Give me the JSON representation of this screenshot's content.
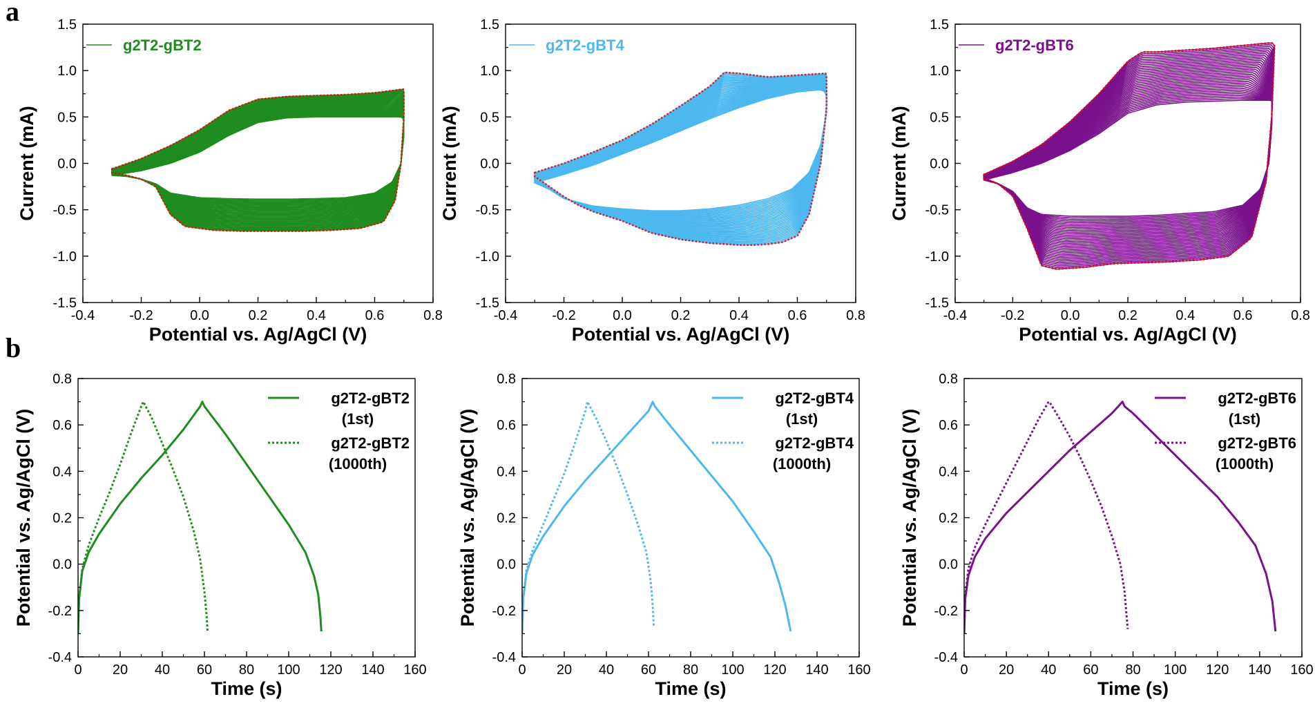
{
  "panel_labels": {
    "a": "a",
    "b": "b"
  },
  "chart_data": [
    {
      "id": "cv1",
      "type": "line",
      "row": "a",
      "col": 0,
      "xlabel": "Potential vs. Ag/AgCl (V)",
      "ylabel": "Current (mA)",
      "xlim": [
        -0.4,
        0.8
      ],
      "ylim": [
        -1.5,
        1.5
      ],
      "xticks": [
        -0.4,
        -0.2,
        0.0,
        0.2,
        0.4,
        0.6,
        0.8
      ],
      "xtick_labels": [
        "-0.4",
        "-0.2",
        "0.0",
        "0.2",
        "0.4",
        "0.6",
        "0.8"
      ],
      "yticks": [
        -1.5,
        -1.0,
        -0.5,
        0.0,
        0.5,
        1.0,
        1.5
      ],
      "ytick_labels": [
        "-1.5",
        "-1.0",
        "-0.5",
        "0.0",
        "0.5",
        "1.0",
        "1.5"
      ],
      "color": "#1e8c1e",
      "envelope_color": "#ff0000",
      "legend": [
        {
          "label": "g2T2-gBT2",
          "style": "solid"
        }
      ],
      "legend_position": "top-left",
      "series": [
        {
          "name": "g2T2-gBT2",
          "role": "first-cycle",
          "x": [
            -0.3,
            -0.2,
            -0.1,
            0.0,
            0.1,
            0.2,
            0.3,
            0.4,
            0.5,
            0.6,
            0.65,
            0.7,
            0.7,
            0.69,
            0.66,
            0.6,
            0.5,
            0.4,
            0.3,
            0.2,
            0.1,
            0.0,
            -0.1,
            -0.15,
            -0.2,
            -0.25,
            -0.3
          ],
          "y": [
            -0.13,
            -0.08,
            0.0,
            0.12,
            0.3,
            0.44,
            0.49,
            0.5,
            0.5,
            0.5,
            0.5,
            0.5,
            0.3,
            0.0,
            -0.2,
            -0.32,
            -0.37,
            -0.38,
            -0.385,
            -0.385,
            -0.38,
            -0.37,
            -0.32,
            -0.22,
            -0.17,
            -0.14,
            -0.13
          ]
        },
        {
          "name": "envelope",
          "role": "envelope",
          "x": [
            -0.3,
            -0.2,
            -0.1,
            0.0,
            0.1,
            0.2,
            0.3,
            0.4,
            0.5,
            0.6,
            0.65,
            0.7,
            0.7,
            0.69,
            0.67,
            0.63,
            0.55,
            0.45,
            0.35,
            0.25,
            0.15,
            0.05,
            -0.05,
            -0.1,
            -0.15,
            -0.2,
            -0.25,
            -0.3
          ],
          "y": [
            -0.06,
            0.05,
            0.19,
            0.36,
            0.57,
            0.69,
            0.72,
            0.73,
            0.74,
            0.76,
            0.78,
            0.8,
            0.5,
            0.0,
            -0.4,
            -0.63,
            -0.7,
            -0.72,
            -0.73,
            -0.73,
            -0.73,
            -0.72,
            -0.68,
            -0.55,
            -0.25,
            -0.17,
            -0.13,
            -0.1
          ]
        }
      ]
    },
    {
      "id": "cv2",
      "type": "line",
      "row": "a",
      "col": 1,
      "xlabel": "Potential vs. Ag/AgCl (V)",
      "ylabel": "Current (mA)",
      "xlim": [
        -0.4,
        0.8
      ],
      "ylim": [
        -1.5,
        1.5
      ],
      "xticks": [
        -0.4,
        -0.2,
        0.0,
        0.2,
        0.4,
        0.6,
        0.8
      ],
      "xtick_labels": [
        "-0.4",
        "-0.2",
        "0.0",
        "0.2",
        "0.4",
        "0.6",
        "0.8"
      ],
      "yticks": [
        -1.5,
        -1.0,
        -0.5,
        0.0,
        0.5,
        1.0,
        1.5
      ],
      "ytick_labels": [
        "-1.5",
        "-1.0",
        "-0.5",
        "0.0",
        "0.5",
        "1.0",
        "1.5"
      ],
      "color": "#4db8f0",
      "envelope_color": "#ff0000",
      "legend": [
        {
          "label": "g2T2-gBT4",
          "style": "solid"
        }
      ],
      "legend_position": "top-left",
      "series": [
        {
          "name": "g2T2-gBT4",
          "role": "first-cycle",
          "x": [
            -0.3,
            -0.2,
            -0.1,
            0.0,
            0.1,
            0.2,
            0.3,
            0.4,
            0.5,
            0.6,
            0.7,
            0.7,
            0.68,
            0.64,
            0.58,
            0.5,
            0.4,
            0.3,
            0.2,
            0.1,
            0.0,
            -0.1,
            -0.2,
            -0.25,
            -0.3
          ],
          "y": [
            -0.21,
            -0.12,
            -0.02,
            0.1,
            0.22,
            0.35,
            0.48,
            0.6,
            0.7,
            0.77,
            0.8,
            0.55,
            0.2,
            -0.1,
            -0.28,
            -0.38,
            -0.45,
            -0.49,
            -0.51,
            -0.51,
            -0.49,
            -0.46,
            -0.38,
            -0.28,
            -0.21
          ]
        },
        {
          "name": "envelope",
          "role": "envelope",
          "x": [
            -0.3,
            -0.2,
            -0.1,
            0.0,
            0.1,
            0.2,
            0.3,
            0.35,
            0.4,
            0.5,
            0.6,
            0.7,
            0.7,
            0.68,
            0.64,
            0.6,
            0.55,
            0.5,
            0.45,
            0.4,
            0.3,
            0.2,
            0.1,
            0.0,
            -0.1,
            -0.15,
            -0.2,
            -0.25,
            -0.3
          ],
          "y": [
            -0.1,
            0.0,
            0.12,
            0.25,
            0.42,
            0.62,
            0.83,
            0.98,
            0.97,
            0.93,
            0.95,
            0.97,
            0.6,
            0.0,
            -0.55,
            -0.78,
            -0.85,
            -0.87,
            -0.88,
            -0.88,
            -0.86,
            -0.82,
            -0.75,
            -0.62,
            -0.52,
            -0.45,
            -0.36,
            -0.25,
            -0.14
          ]
        }
      ]
    },
    {
      "id": "cv3",
      "type": "line",
      "row": "a",
      "col": 2,
      "xlabel": "Potential vs. Ag/AgCl (V)",
      "ylabel": "Current (mA)",
      "xlim": [
        -0.4,
        0.8
      ],
      "ylim": [
        -1.5,
        1.5
      ],
      "xticks": [
        -0.4,
        -0.2,
        0.0,
        0.2,
        0.4,
        0.6,
        0.8
      ],
      "xtick_labels": [
        "-0.4",
        "-0.2",
        "0.0",
        "0.2",
        "0.4",
        "0.6",
        "0.8"
      ],
      "yticks": [
        -1.5,
        -1.0,
        -0.5,
        0.0,
        0.5,
        1.0,
        1.5
      ],
      "ytick_labels": [
        "-1.5",
        "-1.0",
        "-0.5",
        "0.0",
        "0.5",
        "1.0",
        "1.5"
      ],
      "color": "#7a118c",
      "envelope_color": "#ff0000",
      "legend": [
        {
          "label": "g2T2-gBT6",
          "style": "solid"
        }
      ],
      "legend_position": "top-left",
      "series": [
        {
          "name": "g2T2-gBT6",
          "role": "first-cycle",
          "x": [
            -0.3,
            -0.2,
            -0.1,
            0.0,
            0.1,
            0.2,
            0.3,
            0.4,
            0.5,
            0.6,
            0.7,
            0.7,
            0.69,
            0.66,
            0.6,
            0.5,
            0.4,
            0.3,
            0.2,
            0.1,
            0.0,
            -0.1,
            -0.15,
            -0.2,
            -0.25,
            -0.3
          ],
          "y": [
            -0.18,
            -0.1,
            0.0,
            0.14,
            0.32,
            0.54,
            0.63,
            0.66,
            0.67,
            0.68,
            0.68,
            0.4,
            0.0,
            -0.28,
            -0.45,
            -0.52,
            -0.54,
            -0.56,
            -0.57,
            -0.57,
            -0.57,
            -0.55,
            -0.48,
            -0.3,
            -0.22,
            -0.18
          ]
        },
        {
          "name": "envelope",
          "role": "envelope",
          "x": [
            -0.3,
            -0.2,
            -0.1,
            0.0,
            0.1,
            0.2,
            0.25,
            0.3,
            0.4,
            0.5,
            0.6,
            0.7,
            0.71,
            0.7,
            0.68,
            0.63,
            0.55,
            0.45,
            0.35,
            0.25,
            0.15,
            0.05,
            -0.05,
            -0.1,
            -0.15,
            -0.2,
            -0.25,
            -0.3
          ],
          "y": [
            -0.12,
            0.02,
            0.2,
            0.45,
            0.75,
            1.1,
            1.2,
            1.2,
            1.22,
            1.24,
            1.27,
            1.3,
            1.28,
            0.5,
            -0.2,
            -0.8,
            -1.0,
            -1.04,
            -1.06,
            -1.07,
            -1.08,
            -1.12,
            -1.14,
            -1.1,
            -0.7,
            -0.35,
            -0.22,
            -0.16
          ]
        }
      ]
    },
    {
      "id": "gcd1",
      "type": "line",
      "row": "b",
      "col": 0,
      "xlabel": "Time (s)",
      "ylabel": "Potential vs. Ag/AgCl (V)",
      "xlim": [
        0,
        160
      ],
      "ylim": [
        -0.4,
        0.8
      ],
      "xticks": [
        0,
        20,
        40,
        60,
        80,
        100,
        120,
        140,
        160
      ],
      "xtick_labels": [
        "0",
        "20",
        "40",
        "60",
        "80",
        "100",
        "120",
        "140",
        "160"
      ],
      "yticks": [
        -0.4,
        -0.2,
        0.0,
        0.2,
        0.4,
        0.6,
        0.8
      ],
      "ytick_labels": [
        "-0.4",
        "-0.2",
        "0.0",
        "0.2",
        "0.4",
        "0.6",
        "0.8"
      ],
      "color": "#1e8c1e",
      "legend": [
        {
          "label": "g2T2-gBT2",
          "sub": "(1st)",
          "style": "solid"
        },
        {
          "label": "g2T2-gBT2",
          "sub": "(1000th)",
          "style": "dotted"
        }
      ],
      "legend_position": "top-right",
      "series": [
        {
          "name": "g2T2-gBT2 (1st)",
          "style": "solid",
          "x": [
            0,
            0.5,
            2,
            5,
            10,
            20,
            30,
            40,
            50,
            58,
            59,
            60,
            70,
            80,
            90,
            100,
            108,
            112,
            114,
            115,
            115.5
          ],
          "y": [
            -0.3,
            -0.15,
            -0.03,
            0.05,
            0.13,
            0.26,
            0.37,
            0.47,
            0.58,
            0.68,
            0.7,
            0.68,
            0.56,
            0.43,
            0.3,
            0.17,
            0.05,
            -0.05,
            -0.13,
            -0.22,
            -0.29
          ]
        },
        {
          "name": "g2T2-gBT2 (1000th)",
          "style": "dotted",
          "x": [
            0,
            0.5,
            2,
            5,
            10,
            15,
            20,
            25,
            30,
            31,
            35,
            40,
            45,
            50,
            55,
            58,
            60,
            61,
            61.5
          ],
          "y": [
            -0.3,
            -0.15,
            -0.02,
            0.08,
            0.2,
            0.31,
            0.43,
            0.56,
            0.68,
            0.7,
            0.63,
            0.52,
            0.41,
            0.29,
            0.14,
            0.02,
            -0.12,
            -0.22,
            -0.29
          ]
        }
      ]
    },
    {
      "id": "gcd2",
      "type": "line",
      "row": "b",
      "col": 1,
      "xlabel": "Time (s)",
      "ylabel": "Potential vs. Ag/AgCl (V)",
      "xlim": [
        0,
        160
      ],
      "ylim": [
        -0.4,
        0.8
      ],
      "xticks": [
        0,
        20,
        40,
        60,
        80,
        100,
        120,
        140,
        160
      ],
      "xtick_labels": [
        "0",
        "20",
        "40",
        "60",
        "80",
        "100",
        "120",
        "140",
        "160"
      ],
      "yticks": [
        -0.4,
        -0.2,
        0.0,
        0.2,
        0.4,
        0.6,
        0.8
      ],
      "ytick_labels": [
        "-0.4",
        "-0.2",
        "0.0",
        "0.2",
        "0.4",
        "0.6",
        "0.8"
      ],
      "color": "#4db8f0",
      "legend": [
        {
          "label": "g2T2-gBT4",
          "sub": "(1st)",
          "style": "solid"
        },
        {
          "label": "g2T2-gBT4",
          "sub": "(1000th)",
          "style": "dotted"
        }
      ],
      "legend_position": "top-right",
      "series": [
        {
          "name": "g2T2-gBT4 (1st)",
          "style": "solid",
          "x": [
            0,
            0.5,
            2,
            5,
            10,
            20,
            30,
            40,
            50,
            60,
            62,
            63,
            70,
            80,
            90,
            100,
            110,
            118,
            122,
            125,
            127.5
          ],
          "y": [
            -0.3,
            -0.15,
            -0.04,
            0.04,
            0.12,
            0.25,
            0.36,
            0.46,
            0.56,
            0.66,
            0.7,
            0.68,
            0.6,
            0.49,
            0.38,
            0.27,
            0.14,
            0.03,
            -0.08,
            -0.18,
            -0.29
          ]
        },
        {
          "name": "g2T2-gBT4 (1000th)",
          "style": "dotted",
          "x": [
            0,
            0.5,
            2,
            5,
            10,
            15,
            20,
            25,
            30,
            31,
            35,
            40,
            45,
            50,
            55,
            59,
            61,
            62,
            62.5
          ],
          "y": [
            -0.3,
            -0.15,
            -0.03,
            0.06,
            0.17,
            0.28,
            0.39,
            0.52,
            0.66,
            0.7,
            0.63,
            0.53,
            0.42,
            0.3,
            0.17,
            0.05,
            -0.07,
            -0.18,
            -0.27
          ]
        }
      ]
    },
    {
      "id": "gcd3",
      "type": "line",
      "row": "b",
      "col": 2,
      "xlabel": "Time (s)",
      "ylabel": "Potential vs. Ag/AgCl (V)",
      "xlim": [
        0,
        160
      ],
      "ylim": [
        -0.4,
        0.8
      ],
      "xticks": [
        0,
        20,
        40,
        60,
        80,
        100,
        120,
        140,
        160
      ],
      "xtick_labels": [
        "0",
        "20",
        "40",
        "60",
        "80",
        "100",
        "120",
        "140",
        "160"
      ],
      "yticks": [
        -0.4,
        -0.2,
        0.0,
        0.2,
        0.4,
        0.6,
        0.8
      ],
      "ytick_labels": [
        "-0.4",
        "-0.2",
        "0.0",
        "0.2",
        "0.4",
        "0.6",
        "0.8"
      ],
      "color": "#7a118c",
      "legend": [
        {
          "label": "g2T2-gBT6",
          "sub": "(1st)",
          "style": "solid"
        },
        {
          "label": "g2T2-gBT6",
          "sub": "(1000th)",
          "style": "dotted"
        }
      ],
      "legend_position": "top-right",
      "series": [
        {
          "name": "g2T2-gBT6 (1st)",
          "style": "solid",
          "x": [
            0,
            0.5,
            2,
            5,
            10,
            20,
            30,
            40,
            50,
            60,
            70,
            75,
            76,
            80,
            90,
            100,
            110,
            120,
            130,
            138,
            143,
            146,
            147.5
          ],
          "y": [
            -0.3,
            -0.15,
            -0.05,
            0.03,
            0.11,
            0.22,
            0.31,
            0.4,
            0.49,
            0.57,
            0.65,
            0.7,
            0.68,
            0.65,
            0.56,
            0.47,
            0.38,
            0.29,
            0.18,
            0.08,
            -0.04,
            -0.16,
            -0.29
          ]
        },
        {
          "name": "g2T2-gBT6 (1000th)",
          "style": "dotted",
          "x": [
            0,
            0.5,
            2,
            5,
            10,
            15,
            20,
            25,
            30,
            35,
            40,
            41,
            45,
            50,
            55,
            60,
            65,
            70,
            74,
            76,
            77.5
          ],
          "y": [
            -0.3,
            -0.14,
            -0.02,
            0.07,
            0.17,
            0.26,
            0.35,
            0.44,
            0.53,
            0.62,
            0.7,
            0.69,
            0.63,
            0.55,
            0.46,
            0.36,
            0.25,
            0.12,
            0.0,
            -0.12,
            -0.28
          ]
        }
      ]
    }
  ]
}
